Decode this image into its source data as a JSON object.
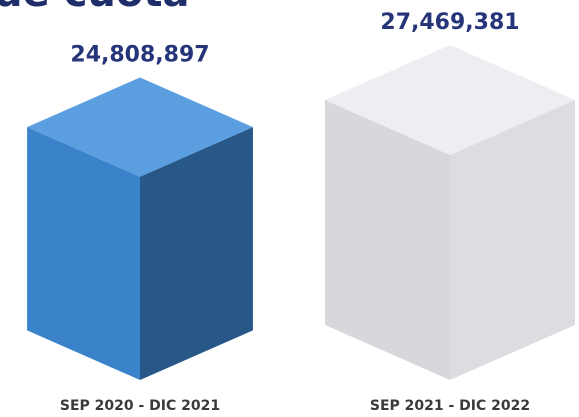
{
  "chart_data": {
    "type": "cube",
    "title": "de cuota",
    "categories": [
      "SEP 2020 - DIC 2021",
      "SEP 2021 - DIC 2022"
    ],
    "values": [
      24808897,
      27469381
    ],
    "value_labels": [
      "24,808,897",
      "27,469,381"
    ],
    "colors": [
      "#3f8fdc",
      "#e9ebef"
    ]
  }
}
